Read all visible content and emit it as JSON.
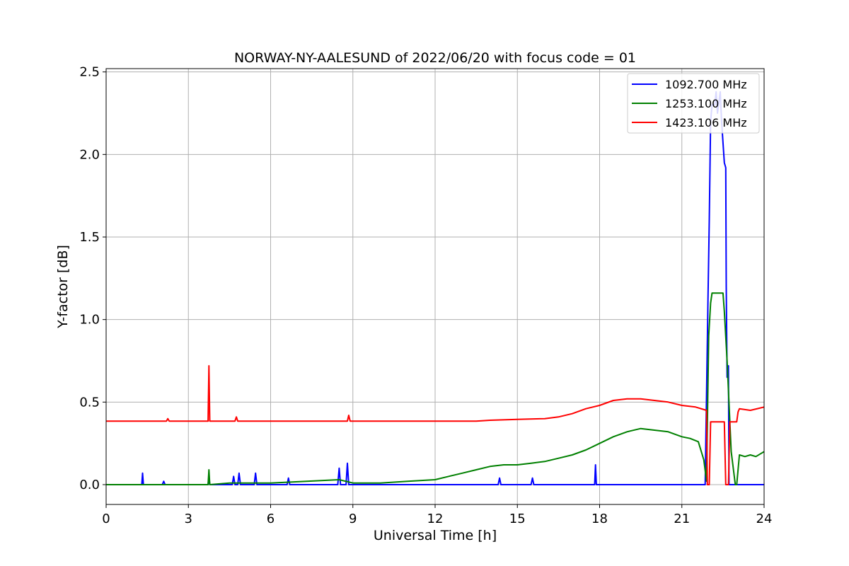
{
  "chart_data": {
    "type": "line",
    "title": "NORWAY-NY-AALESUND of 2022/06/20 with focus code = 01",
    "xlabel": "Universal Time [h]",
    "ylabel": "Y-factor [dB]",
    "xlim": [
      0,
      24
    ],
    "ylim": [
      -0.12,
      2.52
    ],
    "xticks": [
      0,
      3,
      6,
      9,
      12,
      15,
      18,
      21,
      24
    ],
    "xtick_labels": [
      "0",
      "3",
      "6",
      "9",
      "12",
      "15",
      "18",
      "21",
      "24"
    ],
    "yticks": [
      0.0,
      0.5,
      1.0,
      1.5,
      2.0,
      2.5
    ],
    "ytick_labels": [
      "0.0",
      "0.5",
      "1.0",
      "1.5",
      "2.0",
      "2.5"
    ],
    "grid": true,
    "legend_position": "top-right",
    "series": [
      {
        "name": "1092.700 MHz",
        "color": "#0000ff",
        "x": [
          0,
          1.3,
          1.33,
          1.36,
          2.05,
          2.1,
          2.15,
          3.72,
          3.75,
          3.78,
          4.6,
          4.65,
          4.7,
          4.8,
          4.85,
          4.9,
          5.4,
          5.45,
          5.5,
          6.6,
          6.65,
          6.7,
          8.45,
          8.5,
          8.55,
          8.75,
          8.8,
          8.85,
          14.3,
          14.35,
          14.4,
          15.5,
          15.55,
          15.6,
          17.82,
          17.85,
          17.88,
          21.85,
          21.95,
          22.0,
          22.05,
          22.1,
          22.2,
          22.25,
          22.3,
          22.4,
          22.45,
          22.55,
          22.6,
          22.62,
          22.65,
          22.7,
          22.72,
          24
        ],
        "y": [
          0,
          0,
          0.07,
          0,
          0,
          0.02,
          0,
          0,
          0.05,
          0,
          0,
          0.05,
          0,
          0,
          0.07,
          0,
          0,
          0.07,
          0,
          0,
          0.04,
          0,
          0,
          0.1,
          0,
          0,
          0.13,
          0,
          0,
          0.04,
          0,
          0,
          0.04,
          0,
          0,
          0.12,
          0,
          0,
          1.1,
          1.6,
          2.2,
          2.3,
          2.3,
          2.38,
          2.25,
          2.38,
          2.2,
          1.95,
          1.92,
          1.2,
          0.65,
          0.72,
          0,
          0
        ]
      },
      {
        "name": "1253.100 MHz",
        "color": "#008000",
        "x": [
          0,
          3.72,
          3.75,
          3.78,
          4.5,
          6,
          8.5,
          9,
          10,
          11,
          12,
          12.5,
          13,
          13.5,
          14,
          14.5,
          15,
          15.5,
          16,
          16.5,
          17,
          17.5,
          18,
          18.5,
          19,
          19.5,
          20,
          20.5,
          21,
          21.3,
          21.6,
          21.8,
          21.9,
          21.98,
          22.05,
          22.1,
          22.5,
          22.55,
          22.65,
          22.8,
          22.95,
          23.0,
          23.1,
          23.3,
          23.5,
          23.7,
          24
        ],
        "y": [
          0,
          0,
          0.09,
          0,
          0.01,
          0.01,
          0.03,
          0.01,
          0.01,
          0.02,
          0.03,
          0.05,
          0.07,
          0.09,
          0.11,
          0.12,
          0.12,
          0.13,
          0.14,
          0.16,
          0.18,
          0.21,
          0.25,
          0.29,
          0.32,
          0.34,
          0.33,
          0.32,
          0.29,
          0.28,
          0.26,
          0.15,
          0.02,
          0.9,
          1.1,
          1.16,
          1.16,
          1.05,
          0.75,
          0.2,
          0,
          0,
          0.18,
          0.17,
          0.18,
          0.17,
          0.2
        ]
      },
      {
        "name": "1423.106 MHz",
        "color": "#ff0000",
        "x": [
          0,
          2.2,
          2.25,
          2.3,
          3.72,
          3.75,
          3.78,
          4.7,
          4.75,
          4.8,
          8.8,
          8.85,
          8.9,
          13.5,
          14,
          15,
          16,
          16.5,
          17,
          17.5,
          18,
          18.5,
          19,
          19.5,
          20,
          20.5,
          21,
          21.5,
          21.9,
          21.93,
          22.0,
          22.05,
          22.1,
          22.5,
          22.55,
          22.6,
          22.62,
          22.7,
          22.75,
          23.0,
          23.05,
          23.1,
          23.5,
          24
        ],
        "y": [
          0.385,
          0.385,
          0.4,
          0.385,
          0.385,
          0.72,
          0.385,
          0.385,
          0.41,
          0.385,
          0.385,
          0.42,
          0.385,
          0.385,
          0.39,
          0.395,
          0.4,
          0.41,
          0.43,
          0.46,
          0.48,
          0.51,
          0.52,
          0.52,
          0.51,
          0.5,
          0.48,
          0.47,
          0.45,
          0,
          0,
          0.38,
          0.38,
          0.38,
          0.38,
          0,
          0,
          0,
          0.38,
          0.38,
          0.44,
          0.46,
          0.45,
          0.47
        ]
      }
    ]
  }
}
